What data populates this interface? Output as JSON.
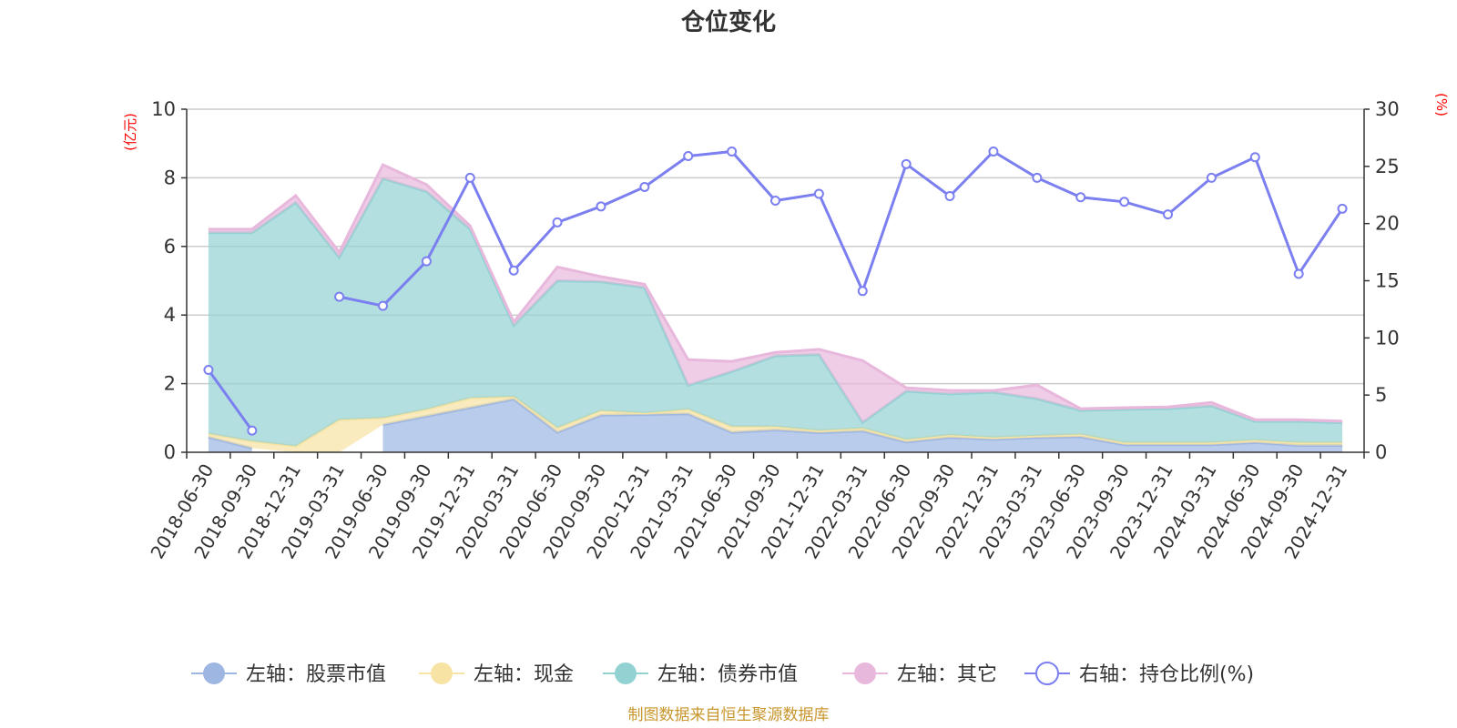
{
  "chart_data": {
    "type": "area",
    "title": "仓位变化",
    "source_note": "制图数据来自恒生聚源数据库",
    "left_axis": {
      "name": "(亿元)",
      "min": 0,
      "max": 10,
      "ticks": [
        0,
        2,
        4,
        6,
        8,
        10
      ]
    },
    "right_axis": {
      "name": "(%)",
      "min": 0,
      "max": 30,
      "ticks": [
        0,
        5,
        10,
        15,
        20,
        25,
        30
      ]
    },
    "categories": [
      "2018-06-30",
      "2018-09-30",
      "2018-12-31",
      "2019-03-31",
      "2019-06-30",
      "2019-09-30",
      "2019-12-31",
      "2020-03-31",
      "2020-06-30",
      "2020-09-30",
      "2020-12-31",
      "2021-03-31",
      "2021-06-30",
      "2021-09-30",
      "2021-12-31",
      "2022-03-31",
      "2022-06-30",
      "2022-09-30",
      "2022-12-31",
      "2023-03-31",
      "2023-06-30",
      "2023-09-30",
      "2023-12-31",
      "2024-03-31",
      "2024-06-30",
      "2024-09-30",
      "2024-12-31"
    ],
    "grid": true,
    "legend_position": "bottom",
    "series": [
      {
        "name": "左轴：股票市值",
        "axis": "left",
        "kind": "stacked-area",
        "color": "#9db6e2",
        "values": [
          0.44,
          0.12,
          null,
          null,
          0.8,
          1.05,
          1.3,
          1.55,
          0.58,
          1.08,
          1.1,
          1.12,
          0.58,
          0.65,
          0.57,
          0.62,
          0.3,
          0.43,
          0.38,
          0.43,
          0.45,
          0.22,
          0.22,
          0.22,
          0.28,
          0.2,
          0.2
        ]
      },
      {
        "name": "左轴：现金",
        "axis": "left",
        "kind": "stacked-area",
        "color": "#f7e3a3",
        "values": [
          0.1,
          0.2,
          0.18,
          0.95,
          0.2,
          0.2,
          0.28,
          0.07,
          0.13,
          0.13,
          0.04,
          0.13,
          0.17,
          0.1,
          0.06,
          0.08,
          0.07,
          0.07,
          0.05,
          0.05,
          0.07,
          0.06,
          0.06,
          0.06,
          0.07,
          0.08,
          0.08
        ]
      },
      {
        "name": "左轴：债券市值",
        "axis": "left",
        "kind": "stacked-area",
        "color": "#93d2d3",
        "values": [
          5.86,
          6.08,
          7.1,
          4.73,
          6.98,
          6.35,
          4.92,
          2.08,
          4.29,
          3.76,
          3.66,
          0.7,
          1.6,
          2.06,
          2.22,
          0.17,
          1.41,
          1.2,
          1.32,
          1.08,
          0.7,
          0.97,
          0.99,
          1.07,
          0.55,
          0.62,
          0.58
        ]
      },
      {
        "name": "左轴：其它",
        "axis": "left",
        "kind": "stacked-area",
        "color": "#e8b8dc",
        "values": [
          0.1,
          0.1,
          0.2,
          0.15,
          0.4,
          0.2,
          0.1,
          0.1,
          0.4,
          0.15,
          0.1,
          0.75,
          0.3,
          0.1,
          0.15,
          1.8,
          0.1,
          0.1,
          0.05,
          0.4,
          0.05,
          0.05,
          0.05,
          0.1,
          0.05,
          0.05,
          0.05
        ]
      },
      {
        "name": "右轴：持仓比例(%)",
        "axis": "right",
        "kind": "line",
        "color": "#7b7ff0",
        "values": [
          7.2,
          1.9,
          null,
          13.6,
          12.8,
          16.7,
          24.0,
          15.9,
          20.1,
          21.5,
          23.2,
          25.9,
          26.3,
          22.0,
          22.6,
          14.1,
          25.2,
          22.4,
          26.3,
          24.0,
          22.3,
          21.9,
          20.8,
          24.0,
          25.8,
          15.6,
          21.3
        ]
      }
    ]
  }
}
